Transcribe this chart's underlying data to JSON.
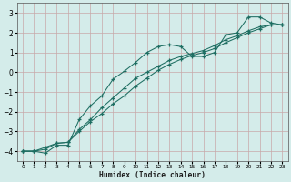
{
  "xlabel": "Humidex (Indice chaleur)",
  "xlim": [
    -0.5,
    23.5
  ],
  "ylim": [
    -4.5,
    3.5
  ],
  "xticks": [
    0,
    1,
    2,
    3,
    4,
    5,
    6,
    7,
    8,
    9,
    10,
    11,
    12,
    13,
    14,
    15,
    16,
    17,
    18,
    19,
    20,
    21,
    22,
    23
  ],
  "yticks": [
    -4,
    -3,
    -2,
    -1,
    0,
    1,
    2,
    3
  ],
  "bg_color": "#d4ecea",
  "grid_color": "#c8a8a8",
  "line_color": "#1e6e62",
  "line1_x": [
    0,
    1,
    2,
    3,
    4,
    5,
    6,
    7,
    8,
    9,
    10,
    11,
    12,
    13,
    14,
    15,
    16,
    17,
    18,
    19,
    20,
    21,
    22,
    23
  ],
  "line1_y": [
    -4.0,
    -4.0,
    -4.1,
    -3.7,
    -3.7,
    -2.4,
    -1.7,
    -1.2,
    -0.35,
    0.05,
    0.5,
    1.0,
    1.3,
    1.4,
    1.3,
    0.8,
    0.8,
    1.0,
    1.9,
    2.0,
    2.8,
    2.8,
    2.5,
    2.4
  ],
  "line2_x": [
    0,
    1,
    2,
    3,
    4,
    5,
    6,
    7,
    8,
    9,
    10,
    11,
    12,
    13,
    14,
    15,
    16,
    17,
    18,
    19,
    20,
    21,
    22,
    23
  ],
  "line2_y": [
    -4.0,
    -4.0,
    -3.8,
    -3.6,
    -3.55,
    -2.9,
    -2.4,
    -1.8,
    -1.3,
    -0.8,
    -0.3,
    0.0,
    0.3,
    0.6,
    0.8,
    0.95,
    1.1,
    1.35,
    1.65,
    1.85,
    2.1,
    2.3,
    2.4,
    2.4
  ],
  "line3_x": [
    0,
    1,
    2,
    3,
    4,
    5,
    6,
    7,
    8,
    9,
    10,
    11,
    12,
    13,
    14,
    15,
    16,
    17,
    18,
    19,
    20,
    21,
    22,
    23
  ],
  "line3_y": [
    -4.0,
    -4.0,
    -3.9,
    -3.6,
    -3.55,
    -3.0,
    -2.5,
    -2.1,
    -1.6,
    -1.2,
    -0.7,
    -0.3,
    0.1,
    0.4,
    0.65,
    0.85,
    1.0,
    1.2,
    1.5,
    1.75,
    2.0,
    2.2,
    2.4,
    2.4
  ]
}
